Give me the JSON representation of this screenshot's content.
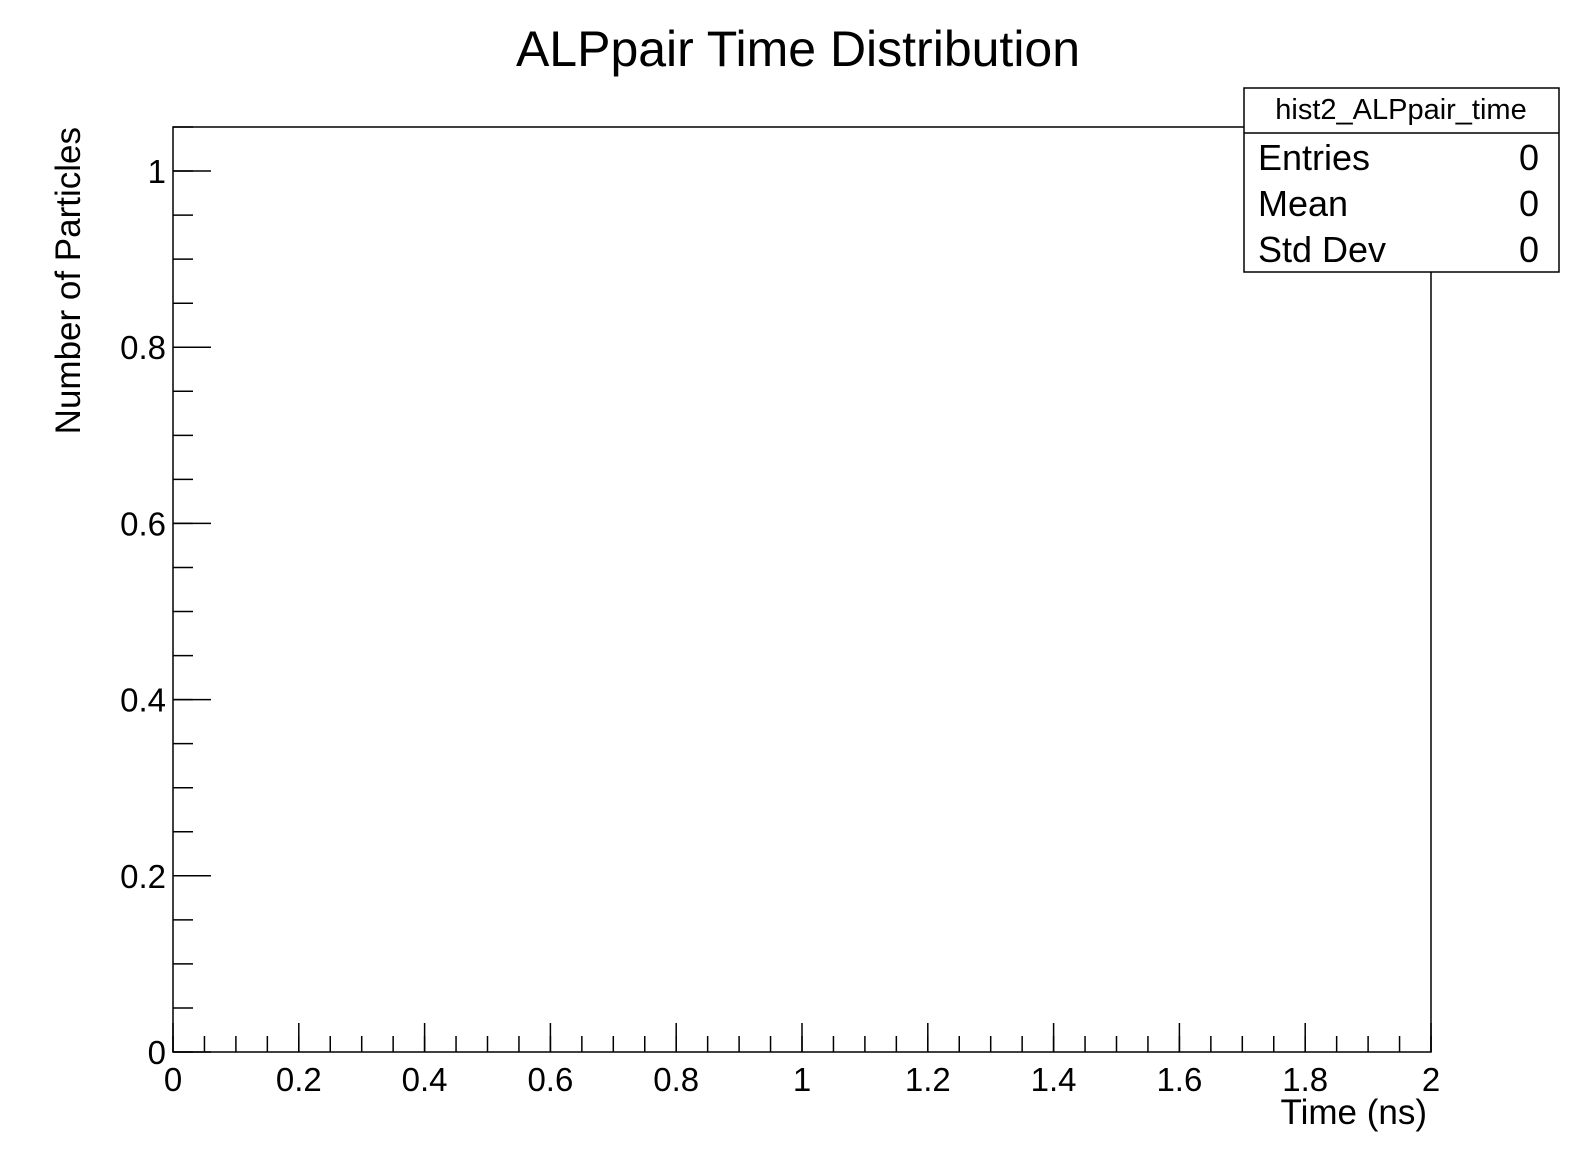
{
  "chart_data": {
    "type": "bar",
    "title": "ALPpair Time Distribution",
    "xlabel": "Time (ns)",
    "ylabel": "Number of Particles",
    "xlim": [
      0,
      2
    ],
    "ylim": [
      0,
      1.05
    ],
    "x_ticks": [
      {
        "value": 0,
        "label": "0"
      },
      {
        "value": 0.2,
        "label": "0.2"
      },
      {
        "value": 0.4,
        "label": "0.4"
      },
      {
        "value": 0.6,
        "label": "0.6"
      },
      {
        "value": 0.8,
        "label": "0.8"
      },
      {
        "value": 1,
        "label": "1"
      },
      {
        "value": 1.2,
        "label": "1.2"
      },
      {
        "value": 1.4,
        "label": "1.4"
      },
      {
        "value": 1.6,
        "label": "1.6"
      },
      {
        "value": 1.8,
        "label": "1.8"
      },
      {
        "value": 2,
        "label": "2"
      }
    ],
    "y_ticks": [
      {
        "value": 0,
        "label": "0"
      },
      {
        "value": 0.2,
        "label": "0.2"
      },
      {
        "value": 0.4,
        "label": "0.4"
      },
      {
        "value": 0.6,
        "label": "0.6"
      },
      {
        "value": 0.8,
        "label": "0.8"
      },
      {
        "value": 1,
        "label": "1"
      }
    ],
    "x_minor_step": 0.05,
    "y_minor_step": 0.05,
    "grid": false,
    "series": [],
    "stats_box": {
      "name": "hist2_ALPpair_time",
      "placement": "top-right",
      "rows": [
        {
          "label": "Entries",
          "value": "0"
        },
        {
          "label": "Mean",
          "value": "0"
        },
        {
          "label": "Std Dev",
          "value": "0"
        }
      ]
    }
  }
}
